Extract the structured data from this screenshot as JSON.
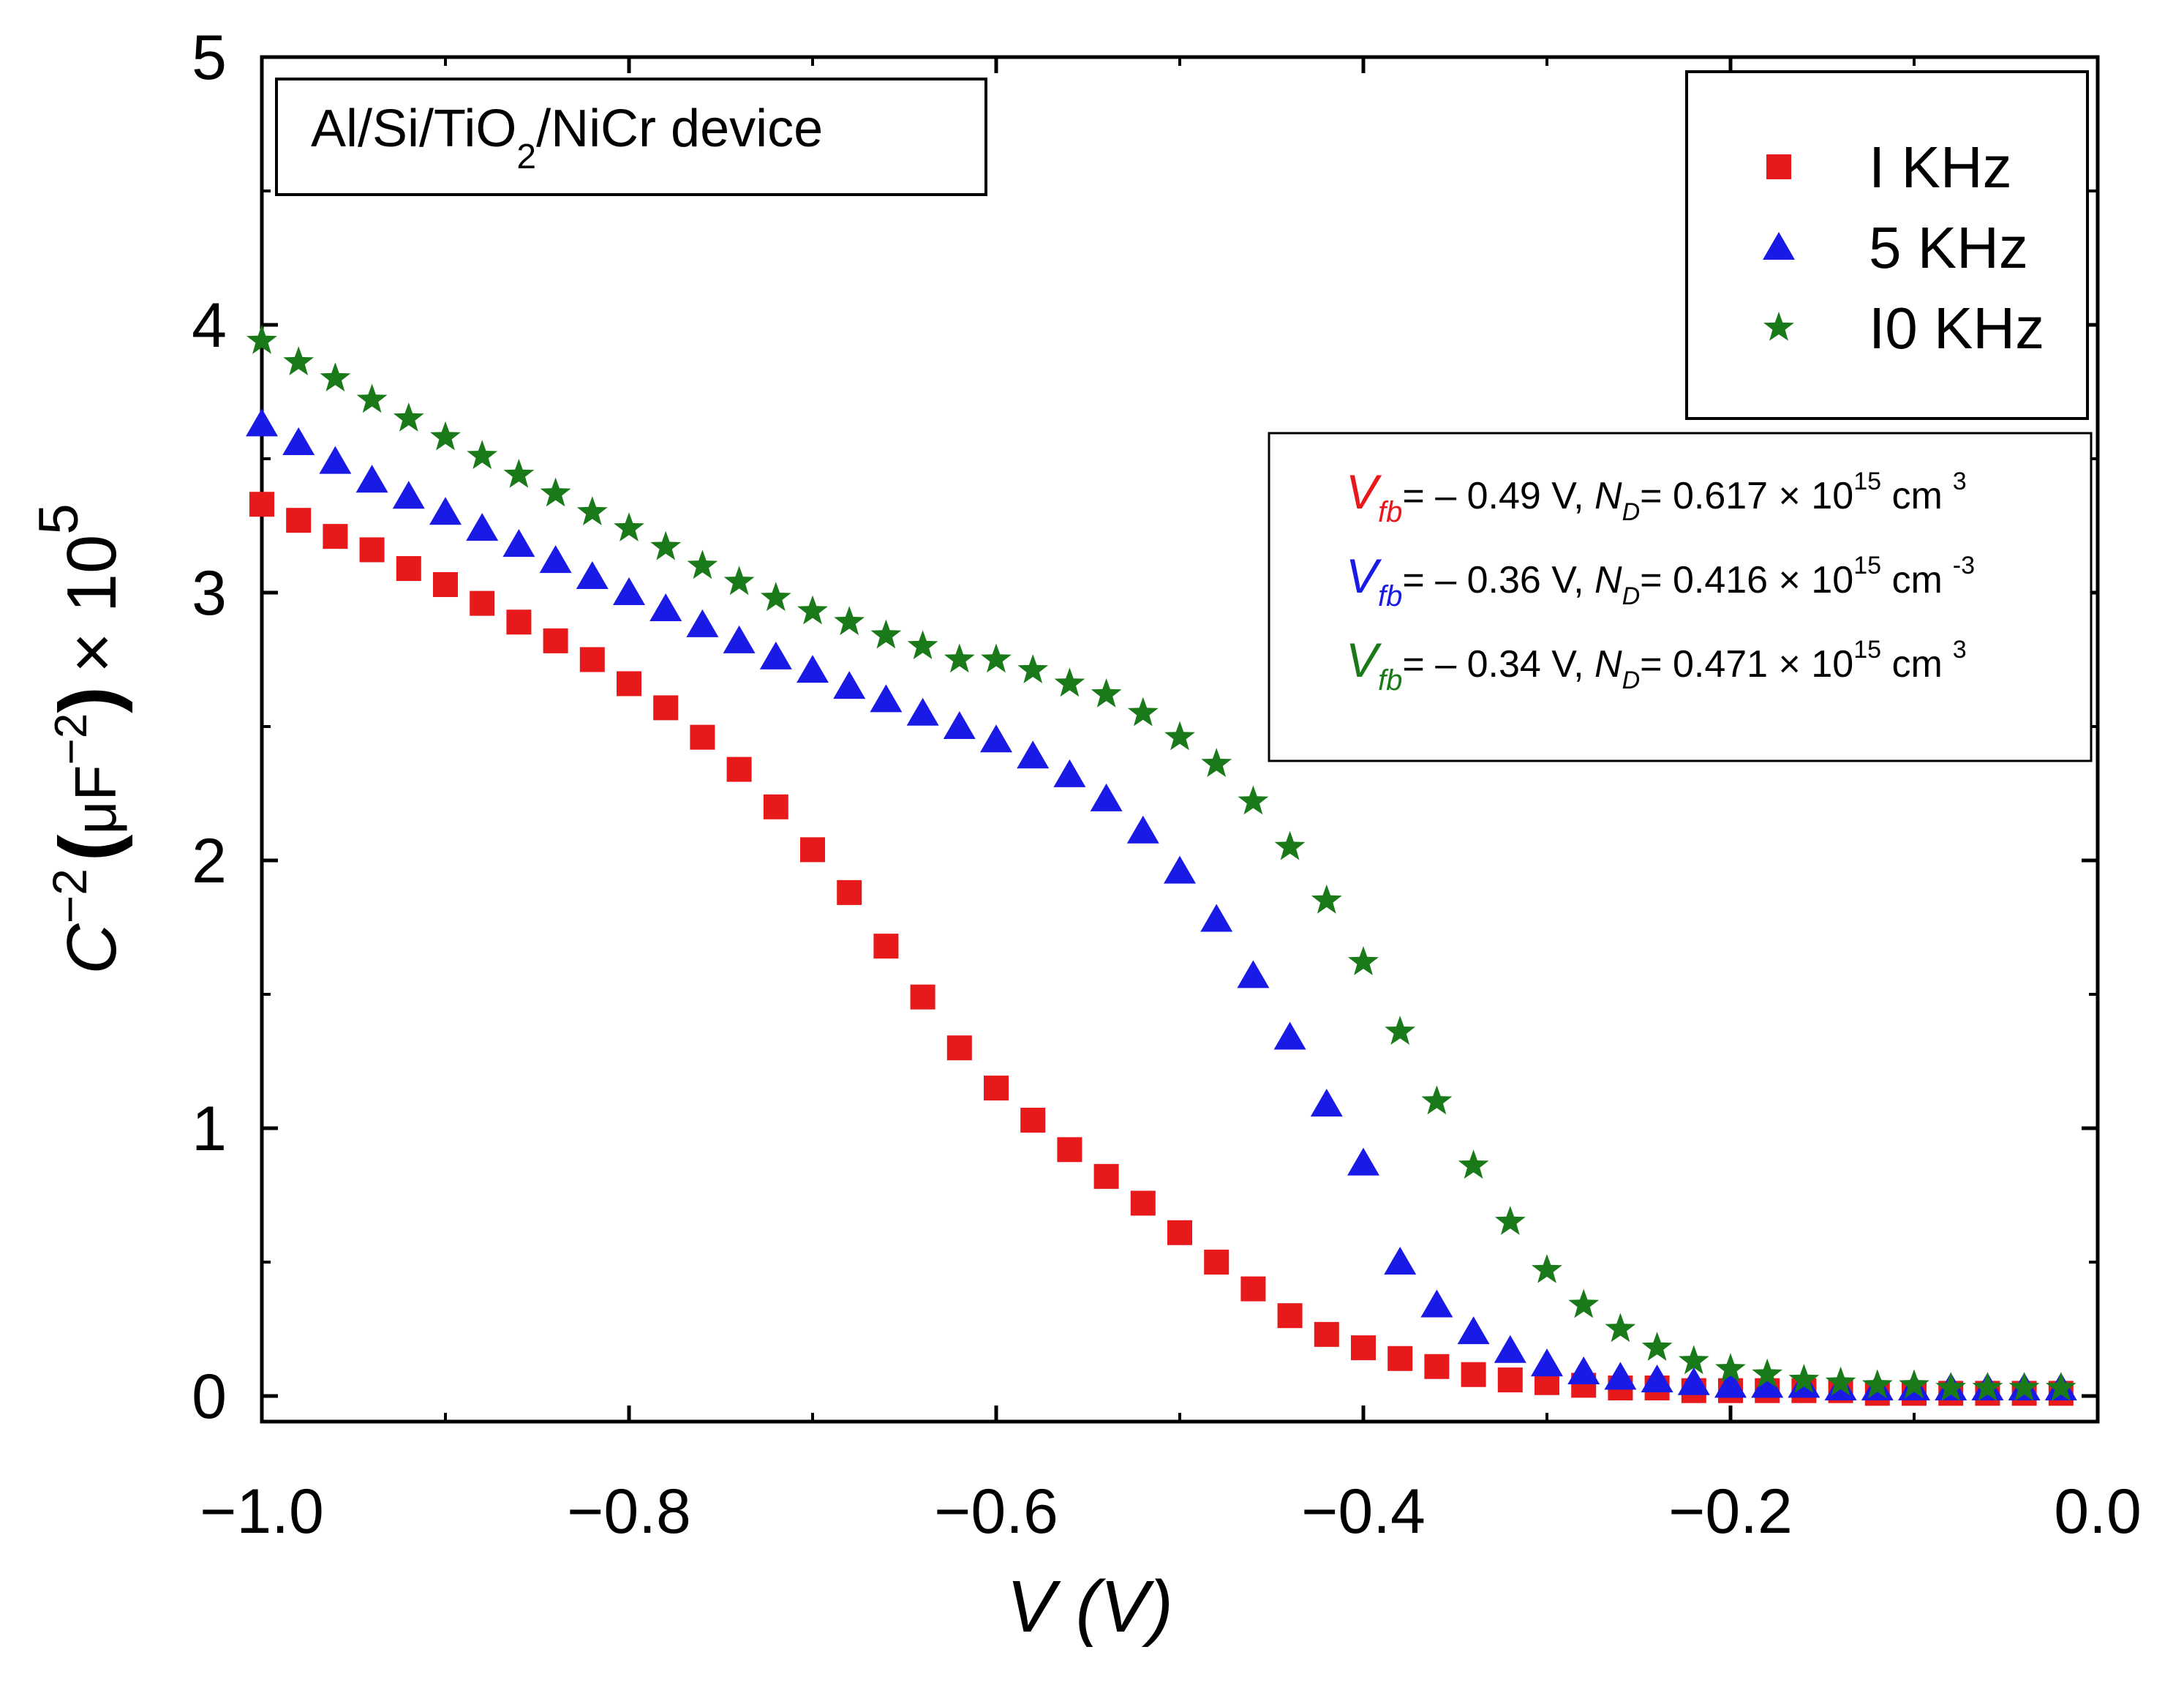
{
  "chart_data": {
    "type": "scatter",
    "annotation": {
      "pre": "Al/Si/TiO",
      "sub": "2",
      "post": "/NiCr device"
    },
    "xlabel": "V (V)",
    "ylabel": {
      "base": "C",
      "exp": "−2",
      "open": "(",
      "mu": "μ",
      "unit": "F",
      "unit_exp": "−2",
      "close": ")",
      "times": "× 10",
      "power": "5"
    },
    "xlim": [
      -1.0,
      0.0
    ],
    "ylim": [
      0,
      5
    ],
    "xticks": [
      "−1.0",
      "−0.8",
      "−0.6",
      "−0.4",
      "−0.2",
      "0.0"
    ],
    "xtick_values": [
      -1.0,
      -0.8,
      -0.6,
      -0.4,
      -0.2,
      0.0
    ],
    "yticks": [
      "0",
      "1",
      "2",
      "3",
      "4",
      "5"
    ],
    "ytick_values": [
      0,
      1,
      2,
      3,
      4,
      5
    ],
    "x": [
      -1.0,
      -0.98,
      -0.96,
      -0.94,
      -0.92,
      -0.9,
      -0.88,
      -0.86,
      -0.84,
      -0.82,
      -0.8,
      -0.78,
      -0.76,
      -0.74,
      -0.72,
      -0.7,
      -0.68,
      -0.66,
      -0.64,
      -0.62,
      -0.6,
      -0.58,
      -0.56,
      -0.54,
      -0.52,
      -0.5,
      -0.48,
      -0.46,
      -0.44,
      -0.42,
      -0.4,
      -0.38,
      -0.36,
      -0.34,
      -0.32,
      -0.3,
      -0.28,
      -0.26,
      -0.24,
      -0.22,
      -0.2,
      -0.18,
      -0.16,
      -0.14,
      -0.12,
      -0.1,
      -0.08,
      -0.06,
      -0.04,
      -0.02
    ],
    "series": [
      {
        "name": "I KHz",
        "color": "#e8191b",
        "marker": "square",
        "values": [
          3.33,
          3.27,
          3.21,
          3.16,
          3.09,
          3.03,
          2.96,
          2.89,
          2.82,
          2.75,
          2.66,
          2.57,
          2.46,
          2.34,
          2.2,
          2.04,
          1.88,
          1.68,
          1.49,
          1.3,
          1.15,
          1.03,
          0.92,
          0.82,
          0.72,
          0.61,
          0.5,
          0.4,
          0.3,
          0.23,
          0.18,
          0.14,
          0.11,
          0.08,
          0.06,
          0.05,
          0.04,
          0.03,
          0.03,
          0.02,
          0.02,
          0.02,
          0.02,
          0.02,
          0.01,
          0.01,
          0.01,
          0.01,
          0.01,
          0.01
        ]
      },
      {
        "name": "5 KHz",
        "color": "#1a1ae6",
        "marker": "triangle",
        "values": [
          3.63,
          3.56,
          3.49,
          3.42,
          3.36,
          3.3,
          3.24,
          3.18,
          3.12,
          3.06,
          3.0,
          2.94,
          2.88,
          2.82,
          2.76,
          2.71,
          2.65,
          2.6,
          2.55,
          2.5,
          2.45,
          2.39,
          2.32,
          2.23,
          2.11,
          1.96,
          1.78,
          1.57,
          1.34,
          1.09,
          0.87,
          0.5,
          0.34,
          0.24,
          0.17,
          0.12,
          0.09,
          0.07,
          0.06,
          0.05,
          0.04,
          0.04,
          0.04,
          0.03,
          0.03,
          0.03,
          0.03,
          0.03,
          0.03,
          0.03
        ]
      },
      {
        "name": "I0 KHz",
        "color": "#1a7a1a",
        "marker": "star",
        "values": [
          3.94,
          3.86,
          3.8,
          3.72,
          3.65,
          3.58,
          3.51,
          3.44,
          3.37,
          3.3,
          3.24,
          3.17,
          3.1,
          3.04,
          2.98,
          2.93,
          2.89,
          2.84,
          2.8,
          2.75,
          2.75,
          2.71,
          2.66,
          2.62,
          2.55,
          2.46,
          2.36,
          2.22,
          2.05,
          1.85,
          1.62,
          1.36,
          1.1,
          0.86,
          0.65,
          0.47,
          0.34,
          0.25,
          0.18,
          0.13,
          0.1,
          0.08,
          0.06,
          0.05,
          0.04,
          0.04,
          0.03,
          0.03,
          0.03,
          0.03
        ]
      }
    ],
    "legend": {
      "placement": "top-right"
    },
    "fits": [
      {
        "color": "#e8191b",
        "v": "V",
        "fb": "fb",
        "vtext": "= – 0.49 V, ",
        "n": "N",
        "d": "D",
        "ntext": "= 0.617 × 10",
        "exp": "15",
        "unit": " cm",
        "uexp": "3"
      },
      {
        "color": "#1a1ae6",
        "v": "V",
        "fb": "fb",
        "vtext": "= – 0.36 V, ",
        "n": "N",
        "d": "D",
        "ntext": "= 0.416 × 10",
        "exp": "15",
        "unit": " cm",
        "uexp": "-3"
      },
      {
        "color": "#1a7a1a",
        "v": "V",
        "fb": "fb",
        "vtext": "= – 0.34 V, ",
        "n": "N",
        "d": "D",
        "ntext": "= 0.471 × 10",
        "exp": "15",
        "unit": " cm",
        "uexp": "3"
      }
    ]
  }
}
